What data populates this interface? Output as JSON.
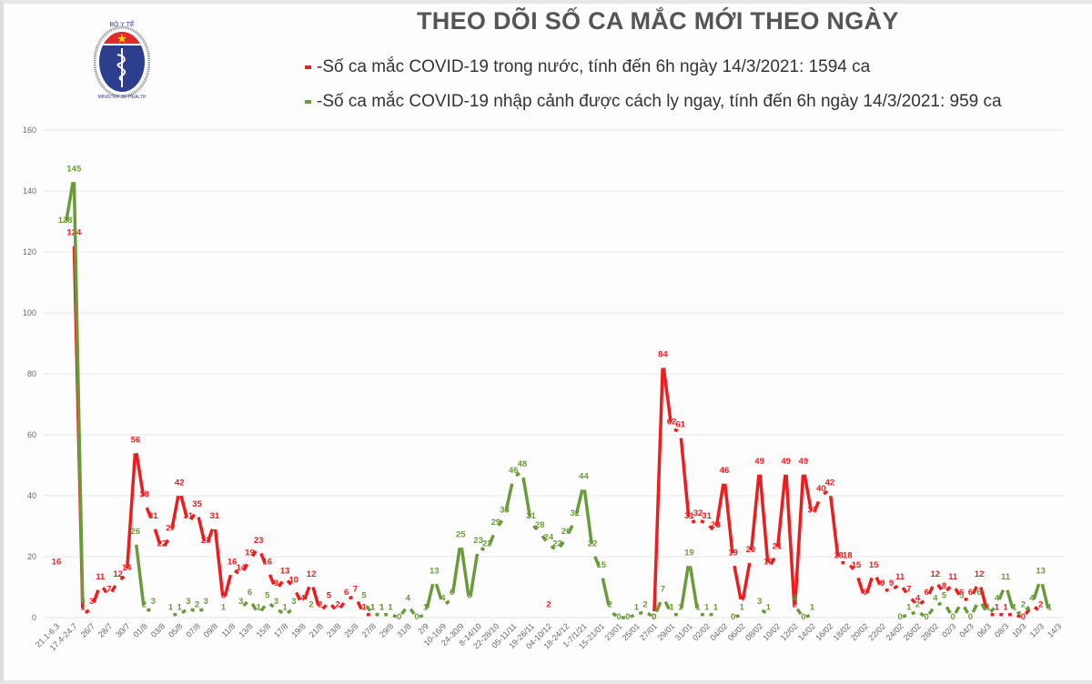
{
  "header": {
    "title": "THEO DÕI SỐ CA MẮC MỚI THEO NGÀY",
    "logo": {
      "top_text": "BỘ Y TẾ",
      "bottom_text": "MINISTRY OF HEALTH",
      "icon": "caduceus-icon"
    },
    "legend": [
      {
        "name": "domestic",
        "color": "#ee1c1c",
        "text": "-Số ca mắc COVID-19 trong nước, tính đến 6h ngày 14/3/2021: 1594 ca"
      },
      {
        "name": "imported",
        "color": "#6a9b3a",
        "text": "-Số ca mắc COVID-19 nhập cảnh được cách ly ngay, tính đến 6h ngày 14/3/2021: 959 ca"
      }
    ]
  },
  "chart_data": {
    "type": "line",
    "title": "THEO DÕI SỐ CA MẮC MỚI THEO NGÀY",
    "xlabel": "",
    "ylabel": "",
    "ylim": [
      0,
      160
    ],
    "yticks": [
      0,
      20,
      40,
      60,
      80,
      100,
      120,
      140,
      160
    ],
    "grid": true,
    "legend_position": "top",
    "x_tick_labels": [
      "21.1-6.3",
      "17.4-24.7",
      "26/7",
      "28/7",
      "30/7",
      "01/8",
      "03/8",
      "05/8",
      "07/8",
      "09/8",
      "11/8",
      "13/8",
      "15/8",
      "17/8",
      "19/8",
      "21/8",
      "23/8",
      "25/8",
      "27/8",
      "29/8",
      "31/8",
      "2/9",
      "10-16/9",
      "24-30/9",
      "8-14/10",
      "22-28/10",
      "05-11/11",
      "19-26/11",
      "04-10/12",
      "18-24/12",
      "1-7/1/21",
      "15-21/01",
      "23/01",
      "25/01",
      "27/01",
      "29/01",
      "31/01",
      "02/02",
      "04/02",
      "06/02",
      "08/02",
      "10/02",
      "12/02",
      "14/02",
      "16/02",
      "18/02",
      "20/02",
      "22/02",
      "24/02",
      "26/02",
      "28/02",
      "02/3",
      "04/3",
      "06/3",
      "08/3",
      "10/3",
      "12/3",
      "14/3"
    ],
    "series": [
      {
        "name": "Số ca mắc COVID-19 trong nước",
        "color": "#ee1c1c",
        "points": [
          [
            0,
            16
          ],
          [
            1,
            124
          ],
          [
            1.5,
            1
          ],
          [
            2,
            3
          ],
          [
            2.5,
            11
          ],
          [
            3,
            7
          ],
          [
            3.5,
            12
          ],
          [
            4,
            14
          ],
          [
            4.5,
            56
          ],
          [
            5,
            38
          ],
          [
            5.5,
            31
          ],
          [
            6,
            22
          ],
          [
            6.5,
            27
          ],
          [
            7,
            42
          ],
          [
            7.5,
            31
          ],
          [
            8,
            35
          ],
          [
            8.5,
            23
          ],
          [
            9,
            31
          ],
          [
            9.5,
            5
          ],
          [
            10,
            16
          ],
          [
            10.5,
            14
          ],
          [
            11,
            19
          ],
          [
            11.5,
            23
          ],
          [
            12,
            16
          ],
          [
            12.5,
            9
          ],
          [
            13,
            13
          ],
          [
            13.5,
            10
          ],
          [
            14,
            4
          ],
          [
            14.5,
            12
          ],
          [
            15,
            2
          ],
          [
            15.5,
            5
          ],
          [
            16,
            2
          ],
          [
            16.5,
            6
          ],
          [
            17,
            7
          ],
          [
            17.5,
            1
          ],
          [
            18,
            1
          ],
          [
            18.5,
            1
          ],
          [
            21,
            1
          ],
          [
            28,
            2
          ],
          [
            34,
            0
          ],
          [
            34.5,
            84
          ],
          [
            35,
            62
          ],
          [
            35.5,
            61
          ],
          [
            36,
            31
          ],
          [
            36.5,
            32
          ],
          [
            37,
            31
          ],
          [
            37.5,
            28
          ],
          [
            38,
            46
          ],
          [
            38.5,
            19
          ],
          [
            39,
            4
          ],
          [
            39.5,
            20
          ],
          [
            40,
            49
          ],
          [
            40.5,
            16
          ],
          [
            41,
            21
          ],
          [
            41.5,
            49
          ],
          [
            42,
            2
          ],
          [
            42.5,
            49
          ],
          [
            43,
            33
          ],
          [
            43.5,
            40
          ],
          [
            44,
            42
          ],
          [
            44.5,
            18
          ],
          [
            45,
            18
          ],
          [
            45.5,
            15
          ],
          [
            46,
            6
          ],
          [
            46.5,
            15
          ],
          [
            47,
            9
          ],
          [
            47.5,
            9
          ],
          [
            48,
            11
          ],
          [
            48.5,
            7
          ],
          [
            49,
            4
          ],
          [
            49.5,
            6
          ],
          [
            50,
            12
          ],
          [
            50.5,
            8
          ],
          [
            51,
            11
          ],
          [
            51.5,
            6
          ],
          [
            52,
            6
          ],
          [
            52.5,
            12
          ],
          [
            53,
            1
          ],
          [
            53.5,
            1
          ],
          [
            54,
            1
          ],
          [
            54.5,
            1
          ],
          [
            55,
            0
          ],
          [
            55.5,
            4
          ],
          [
            56,
            2
          ]
        ]
      },
      {
        "name": "Số ca mắc COVID-19 nhập cảnh được cách ly ngay",
        "color": "#6a9b3a",
        "points": [
          [
            0.5,
            128
          ],
          [
            1,
            145
          ],
          [
            1.5,
            3
          ],
          [
            4.5,
            26
          ],
          [
            5,
            2
          ],
          [
            5.5,
            3
          ],
          [
            6.5,
            1
          ],
          [
            7,
            1
          ],
          [
            7.5,
            3
          ],
          [
            8,
            2
          ],
          [
            8.5,
            3
          ],
          [
            9.5,
            1
          ],
          [
            10.5,
            3
          ],
          [
            11,
            6
          ],
          [
            11.5,
            1
          ],
          [
            12,
            5
          ],
          [
            12.5,
            3
          ],
          [
            13,
            1
          ],
          [
            13.5,
            3
          ],
          [
            14.5,
            2
          ],
          [
            17.5,
            5
          ],
          [
            18,
            1
          ],
          [
            18.5,
            1
          ],
          [
            19,
            1
          ],
          [
            19.5,
            0
          ],
          [
            20,
            4
          ],
          [
            20.5,
            0
          ],
          [
            21,
            1
          ],
          [
            21.5,
            13
          ],
          [
            22,
            4
          ],
          [
            22.5,
            6
          ],
          [
            23,
            25
          ],
          [
            23.5,
            5
          ],
          [
            24,
            23
          ],
          [
            24.5,
            22
          ],
          [
            25,
            29
          ],
          [
            25.5,
            33
          ],
          [
            26,
            46
          ],
          [
            26.5,
            48
          ],
          [
            27,
            31
          ],
          [
            27.5,
            28
          ],
          [
            28,
            24
          ],
          [
            28.5,
            22
          ],
          [
            29,
            26
          ],
          [
            29.5,
            32
          ],
          [
            30,
            44
          ],
          [
            30.5,
            22
          ],
          [
            31,
            15
          ],
          [
            31.5,
            2
          ],
          [
            32,
            0
          ],
          [
            32.5,
            0
          ],
          [
            33,
            1
          ],
          [
            33.5,
            2
          ],
          [
            34,
            0
          ],
          [
            34.5,
            7
          ],
          [
            35,
            1
          ],
          [
            35.5,
            1
          ],
          [
            36,
            19
          ],
          [
            36.5,
            1
          ],
          [
            37,
            1
          ],
          [
            37.5,
            1
          ],
          [
            38.5,
            0
          ],
          [
            39,
            1
          ],
          [
            40,
            3
          ],
          [
            40.5,
            1
          ],
          [
            42,
            4
          ],
          [
            42.5,
            0
          ],
          [
            43,
            1
          ],
          [
            48,
            0
          ],
          [
            48.5,
            1
          ],
          [
            49,
            2
          ],
          [
            49.5,
            0
          ],
          [
            50,
            4
          ],
          [
            50.5,
            5
          ],
          [
            51,
            0
          ],
          [
            51.5,
            5
          ],
          [
            52,
            0
          ],
          [
            52.5,
            6
          ],
          [
            53,
            1
          ],
          [
            53.5,
            4
          ],
          [
            54,
            11
          ],
          [
            54.5,
            1
          ],
          [
            55,
            2
          ],
          [
            55.5,
            4
          ],
          [
            56,
            13
          ],
          [
            56.5,
            1
          ]
        ]
      }
    ]
  }
}
